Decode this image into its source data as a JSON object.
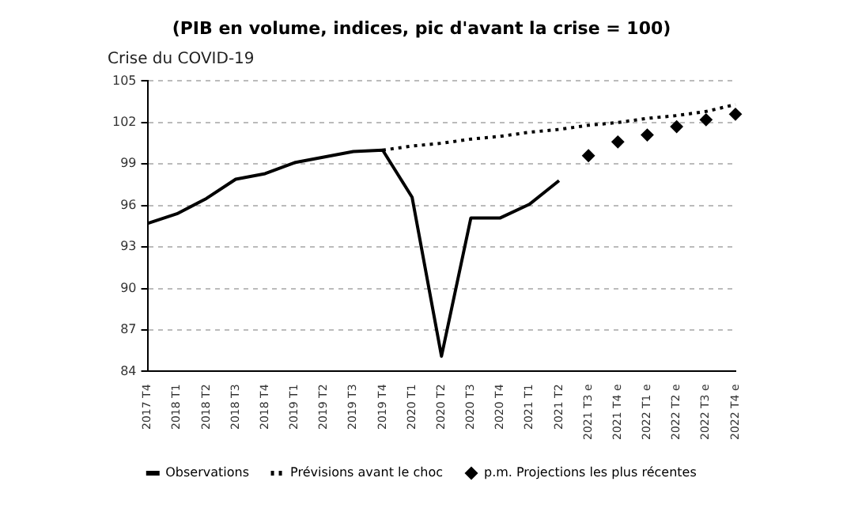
{
  "chart_data": {
    "type": "line",
    "title": "(PIB en volume, indices, pic d'avant la crise = 100)",
    "subtitle": "Crise du COVID-19",
    "categories": [
      "2017 T4",
      "2018 T1",
      "2018 T2",
      "2018 T3",
      "2018 T4",
      "2019 T1",
      "2019 T2",
      "2019 T3",
      "2019 T4",
      "2020 T1",
      "2020 T2",
      "2020 T3",
      "2020 T4",
      "2021 T1",
      "2021 T2",
      "2021 T3 e",
      "2021 T4 e",
      "2022 T1 e",
      "2022 T2 e",
      "2022 T3 e",
      "2022 T4 e"
    ],
    "series": [
      {
        "name": "Observations",
        "color": "#000000",
        "line_style": "solid",
        "marker": "none",
        "values": [
          94.7,
          95.4,
          96.5,
          97.9,
          98.3,
          99.1,
          99.5,
          99.9,
          100,
          96.6,
          85.1,
          95.1,
          95.1,
          96.1,
          97.8,
          null,
          null,
          null,
          null,
          null,
          null
        ]
      },
      {
        "name": "Prévisions avant le choc",
        "color": "#000000",
        "line_style": "dotted",
        "marker": "none",
        "values": [
          null,
          null,
          null,
          null,
          null,
          null,
          null,
          null,
          100,
          100.3,
          100.5,
          100.8,
          101,
          101.3,
          101.5,
          101.8,
          102,
          102.3,
          102.5,
          102.8,
          103.3
        ]
      },
      {
        "name": "p.m. Projections les plus récentes",
        "color": "#000000",
        "type": "scatter",
        "marker": "diamond",
        "values": [
          null,
          null,
          null,
          null,
          null,
          null,
          null,
          null,
          null,
          null,
          null,
          null,
          null,
          null,
          null,
          99.6,
          100.6,
          101.1,
          101.7,
          102.2,
          102.6
        ]
      }
    ],
    "ylim": [
      84,
      105
    ],
    "yticks": [
      84,
      87,
      90,
      93,
      96,
      99,
      102,
      105
    ],
    "grid": "y",
    "legend": "bottom"
  }
}
